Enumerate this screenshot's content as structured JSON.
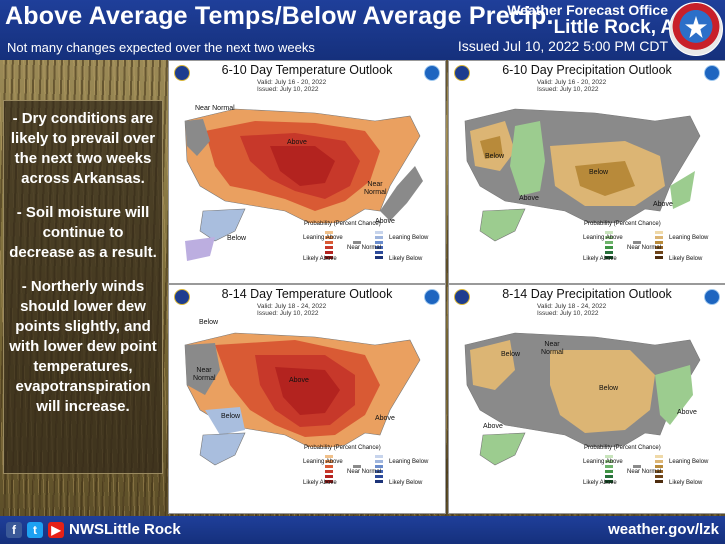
{
  "header": {
    "title": "Above Average Temps/Below Average Precip.",
    "subtitle": "Not many changes expected over the next two weeks",
    "office": "Weather Forecast Office",
    "city": "Little Rock, AR",
    "issued": "Issued Jul 10, 2022 5:00 PM CDT"
  },
  "bullets": [
    "- Dry conditions are likely to prevail over the next two weeks across Arkansas.",
    "- Soil moisture will continue to decrease as a result.",
    "- Northerly winds should lower dew points slightly, and with lower dew point temperatures, evapotranspiration will increase."
  ],
  "panels": [
    {
      "title": "6-10 Day Temperature Outlook",
      "valid": "Valid:   July 16 - 20, 2022",
      "issued": "Issued:  July 10, 2022",
      "labels": [
        "Near Normal",
        "Above",
        "Near Normal",
        "Below",
        "Above"
      ],
      "legend_title": "Probability (Percent Chance)",
      "legend_left": [
        "Leaning Above",
        "Likely Above"
      ],
      "legend_mid": "Near Normal",
      "legend_right": [
        "Leaning Below",
        "Likely Below"
      ]
    },
    {
      "title": "6-10 Day Precipitation Outlook",
      "valid": "Valid:   July 16 - 20, 2022",
      "issued": "Issued:  July 10, 2022",
      "labels": [
        "Below",
        "Above",
        "Below",
        "Above"
      ],
      "legend_title": "Probability (Percent Chance)",
      "legend_left": [
        "Leaning Above",
        "Likely Above"
      ],
      "legend_mid": "Near Normal",
      "legend_right": [
        "Leaning Below",
        "Likely Below"
      ]
    },
    {
      "title": "8-14 Day Temperature Outlook",
      "valid": "Valid:   July 18 - 24, 2022",
      "issued": "Issued:  July 10, 2022",
      "labels": [
        "Below",
        "Near Normal",
        "Above",
        "Below",
        "Above"
      ],
      "legend_title": "Probability (Percent Chance)",
      "legend_left": [
        "Leaning Above",
        "Likely Above"
      ],
      "legend_mid": "Near Normal",
      "legend_right": [
        "Leaning Below",
        "Likely Below"
      ]
    },
    {
      "title": "8-14 Day Precipitation Outlook",
      "valid": "Valid:   July 18 - 24, 2022",
      "issued": "Issued:  July 10, 2022",
      "labels": [
        "Below",
        "Near Normal",
        "Below",
        "Above",
        "Above"
      ],
      "legend_title": "Probability (Percent Chance)",
      "legend_left": [
        "Leaning Above",
        "Likely Above"
      ],
      "legend_mid": "Near Normal",
      "legend_right": [
        "Leaning Below",
        "Likely Below"
      ]
    }
  ],
  "footer": {
    "facebook_glyph": "f",
    "twitter_glyph": "t",
    "youtube_glyph": "▶",
    "handle": "NWSLittle Rock",
    "url": "weather.gov/lzk"
  },
  "colors": {
    "header_bg": "#1f3f9a",
    "above_temp_strong": "#b3231f",
    "above_temp": "#d95a34",
    "above_temp_weak": "#eaa060",
    "below_temp": "#a9bede",
    "near_normal": "#8a8a8a",
    "below_precip": "#dcb574",
    "below_precip_strong": "#b88a3a",
    "above_precip": "#9ccc8f"
  }
}
